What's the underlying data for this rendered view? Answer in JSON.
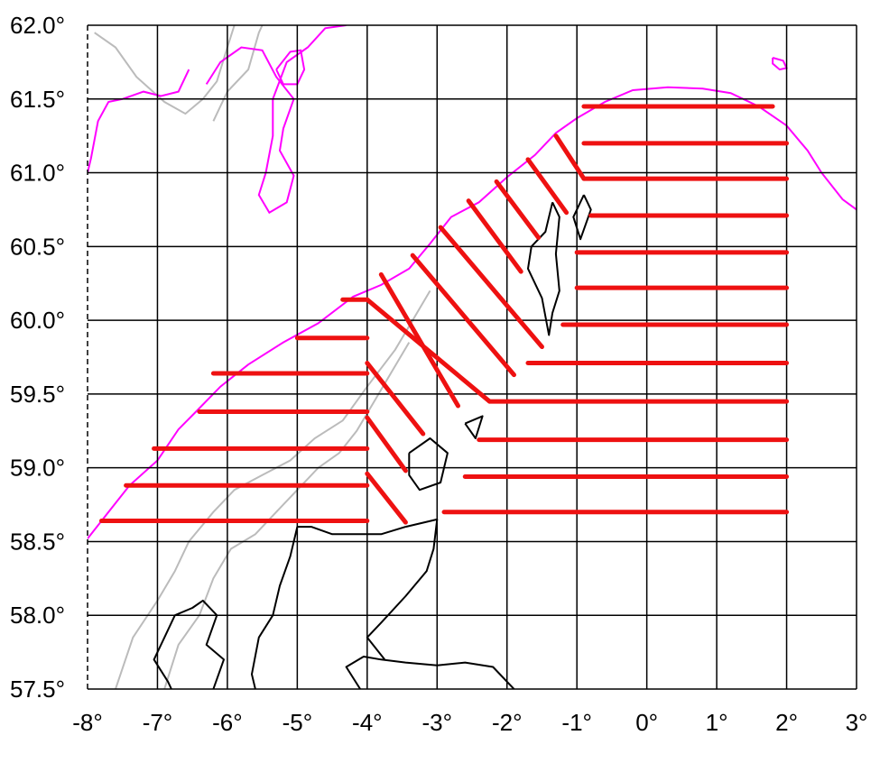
{
  "map": {
    "x_ticks": [
      {
        "value": -8,
        "label": "-8°"
      },
      {
        "value": -7,
        "label": "-7°"
      },
      {
        "value": -6,
        "label": "-6°"
      },
      {
        "value": -5,
        "label": "-5°"
      },
      {
        "value": -4,
        "label": "-4°"
      },
      {
        "value": -3,
        "label": "-3°"
      },
      {
        "value": -2,
        "label": "-2°"
      },
      {
        "value": -1,
        "label": "-1°"
      },
      {
        "value": 0,
        "label": "0°"
      },
      {
        "value": 1,
        "label": "1°"
      },
      {
        "value": 2,
        "label": "2°"
      },
      {
        "value": 3,
        "label": "3°"
      }
    ],
    "y_ticks": [
      {
        "value": 62.0,
        "label": "62.0°"
      },
      {
        "value": 61.5,
        "label": "61.5°"
      },
      {
        "value": 61.0,
        "label": "61.0°"
      },
      {
        "value": 60.5,
        "label": "60.5°"
      },
      {
        "value": 60.0,
        "label": "60.0°"
      },
      {
        "value": 59.5,
        "label": "59.5°"
      },
      {
        "value": 59.0,
        "label": "59.0°"
      },
      {
        "value": 58.5,
        "label": "58.5°"
      },
      {
        "value": 58.0,
        "label": "58.0°"
      },
      {
        "value": 57.5,
        "label": "57.5°"
      }
    ],
    "lon_range": [
      -8,
      3
    ],
    "lat_range": [
      57.5,
      62.0
    ],
    "grid": true,
    "colors": {
      "transects": "#ee1111",
      "shelf_edge": "#ff00ff",
      "bathymetry": "#bbbbbb",
      "coastline": "#000000",
      "grid": "#000000"
    },
    "transects": [
      {
        "from": [
          -0.9,
          61.45
        ],
        "to": [
          1.8,
          61.45
        ]
      },
      {
        "from": [
          -0.9,
          61.2
        ],
        "to": [
          2.0,
          61.2
        ]
      },
      {
        "from": [
          -1.3,
          61.25
        ],
        "to": [
          -0.9,
          60.96
        ]
      },
      {
        "from": [
          -0.9,
          60.96
        ],
        "to": [
          2.0,
          60.96
        ]
      },
      {
        "from": [
          -1.7,
          61.09
        ],
        "to": [
          -1.15,
          60.73
        ]
      },
      {
        "from": [
          -2.15,
          60.94
        ],
        "to": [
          -1.55,
          60.56
        ]
      },
      {
        "from": [
          -0.8,
          60.71
        ],
        "to": [
          2.0,
          60.71
        ]
      },
      {
        "from": [
          -2.55,
          60.81
        ],
        "to": [
          -1.8,
          60.33
        ]
      },
      {
        "from": [
          -1.0,
          60.46
        ],
        "to": [
          2.0,
          60.46
        ]
      },
      {
        "from": [
          -2.95,
          60.63
        ],
        "to": [
          -1.5,
          59.82
        ]
      },
      {
        "from": [
          -3.35,
          60.44
        ],
        "to": [
          -1.9,
          59.63
        ]
      },
      {
        "from": [
          -1.0,
          60.22
        ],
        "to": [
          2.0,
          60.22
        ]
      },
      {
        "from": [
          -3.8,
          60.31
        ],
        "to": [
          -2.7,
          59.42
        ]
      },
      {
        "from": [
          -4.35,
          60.14
        ],
        "to": [
          -4.0,
          60.14
        ]
      },
      {
        "from": [
          -4.0,
          60.14
        ],
        "to": [
          -2.25,
          59.45
        ]
      },
      {
        "from": [
          -1.2,
          59.97
        ],
        "to": [
          2.0,
          59.97
        ]
      },
      {
        "from": [
          -5.0,
          59.88
        ],
        "to": [
          -4.0,
          59.88
        ]
      },
      {
        "from": [
          -1.7,
          59.71
        ],
        "to": [
          2.0,
          59.71
        ]
      },
      {
        "from": [
          -4.0,
          59.71
        ],
        "to": [
          -3.2,
          59.23
        ]
      },
      {
        "from": [
          -6.2,
          59.64
        ],
        "to": [
          -4.0,
          59.64
        ]
      },
      {
        "from": [
          -2.25,
          59.45
        ],
        "to": [
          2.0,
          59.45
        ]
      },
      {
        "from": [
          -6.4,
          59.38
        ],
        "to": [
          -4.0,
          59.38
        ]
      },
      {
        "from": [
          -4.0,
          59.34
        ],
        "to": [
          -3.45,
          58.98
        ]
      },
      {
        "from": [
          -2.4,
          59.19
        ],
        "to": [
          2.0,
          59.19
        ]
      },
      {
        "from": [
          -7.05,
          59.13
        ],
        "to": [
          -4.0,
          59.13
        ]
      },
      {
        "from": [
          -4.0,
          58.96
        ],
        "to": [
          -3.45,
          58.63
        ]
      },
      {
        "from": [
          -2.6,
          58.94
        ],
        "to": [
          2.0,
          58.94
        ]
      },
      {
        "from": [
          -7.45,
          58.88
        ],
        "to": [
          -4.0,
          58.88
        ]
      },
      {
        "from": [
          -2.9,
          58.7
        ],
        "to": [
          2.0,
          58.7
        ]
      },
      {
        "from": [
          -7.8,
          58.64
        ],
        "to": [
          -4.0,
          58.64
        ]
      }
    ],
    "shelf_edge": [
      [
        -8.0,
        58.52
      ],
      [
        -7.7,
        58.7
      ],
      [
        -7.4,
        58.88
      ],
      [
        -7.0,
        59.05
      ],
      [
        -6.7,
        59.26
      ],
      [
        -6.45,
        59.38
      ],
      [
        -6.1,
        59.55
      ],
      [
        -5.7,
        59.7
      ],
      [
        -5.2,
        59.85
      ],
      [
        -4.7,
        59.98
      ],
      [
        -4.2,
        60.16
      ],
      [
        -3.8,
        60.24
      ],
      [
        -3.4,
        60.35
      ],
      [
        -3.1,
        60.52
      ],
      [
        -2.8,
        60.7
      ],
      [
        -2.4,
        60.8
      ],
      [
        -2.0,
        60.97
      ],
      [
        -1.6,
        61.12
      ],
      [
        -1.3,
        61.27
      ],
      [
        -1.0,
        61.37
      ],
      [
        -0.6,
        61.48
      ],
      [
        -0.2,
        61.56
      ],
      [
        0.3,
        61.58
      ],
      [
        0.8,
        61.57
      ],
      [
        1.2,
        61.54
      ],
      [
        1.6,
        61.45
      ],
      [
        2.0,
        61.32
      ],
      [
        2.3,
        61.15
      ],
      [
        2.5,
        61.0
      ],
      [
        2.8,
        60.82
      ],
      [
        3.0,
        60.75
      ]
    ],
    "shelf_edge_north": [
      [
        -6.3,
        61.6
      ],
      [
        -6.1,
        61.75
      ],
      [
        -5.8,
        61.85
      ],
      [
        -5.5,
        61.83
      ],
      [
        -5.3,
        61.65
      ],
      [
        -5.05,
        61.5
      ],
      [
        -5.2,
        61.3
      ],
      [
        -5.25,
        61.15
      ],
      [
        -5.05,
        60.98
      ],
      [
        -5.15,
        60.8
      ],
      [
        -5.4,
        60.73
      ],
      [
        -5.55,
        60.85
      ],
      [
        -5.45,
        61.0
      ],
      [
        -5.35,
        61.25
      ],
      [
        -5.35,
        61.5
      ],
      [
        -5.15,
        61.75
      ],
      [
        -4.85,
        61.85
      ],
      [
        -4.6,
        61.98
      ],
      [
        -4.3,
        62.0
      ]
    ],
    "shelf_edge_northwest": [
      [
        -8.0,
        61.0
      ],
      [
        -7.95,
        61.1
      ],
      [
        -7.85,
        61.35
      ],
      [
        -7.7,
        61.48
      ],
      [
        -7.5,
        61.5
      ],
      [
        -7.2,
        61.55
      ],
      [
        -6.95,
        61.52
      ],
      [
        -6.7,
        61.55
      ],
      [
        -6.55,
        61.7
      ]
    ],
    "shelf_ring": [
      [
        -5.3,
        61.7
      ],
      [
        -5.1,
        61.82
      ],
      [
        -4.95,
        61.83
      ],
      [
        -4.9,
        61.7
      ],
      [
        -5.0,
        61.6
      ],
      [
        -5.2,
        61.6
      ],
      [
        -5.3,
        61.7
      ]
    ],
    "shelf_ring_east": [
      [
        1.8,
        61.78
      ],
      [
        1.95,
        61.76
      ],
      [
        2.0,
        61.71
      ],
      [
        1.9,
        61.7
      ],
      [
        1.8,
        61.74
      ],
      [
        1.8,
        61.78
      ]
    ],
    "bathymetry_lines": [
      [
        [
          -7.6,
          57.5
        ],
        [
          -7.35,
          57.85
        ],
        [
          -7.0,
          58.1
        ],
        [
          -6.75,
          58.3
        ],
        [
          -6.55,
          58.5
        ],
        [
          -6.2,
          58.7
        ],
        [
          -5.9,
          58.85
        ],
        [
          -5.5,
          58.95
        ],
        [
          -5.1,
          59.05
        ],
        [
          -4.75,
          59.2
        ],
        [
          -4.35,
          59.32
        ],
        [
          -4.0,
          59.55
        ],
        [
          -3.6,
          59.8
        ],
        [
          -3.35,
          60.0
        ],
        [
          -3.1,
          60.2
        ]
      ],
      [
        [
          -6.9,
          57.5
        ],
        [
          -6.7,
          57.8
        ],
        [
          -6.4,
          58.0
        ],
        [
          -6.2,
          58.25
        ],
        [
          -5.95,
          58.45
        ],
        [
          -5.6,
          58.55
        ],
        [
          -5.3,
          58.7
        ],
        [
          -5.0,
          58.85
        ],
        [
          -4.7,
          59.0
        ],
        [
          -4.4,
          59.1
        ],
        [
          -4.15,
          59.25
        ],
        [
          -3.9,
          59.45
        ],
        [
          -3.65,
          59.65
        ],
        [
          -3.4,
          59.85
        ]
      ],
      [
        [
          -7.9,
          61.95
        ],
        [
          -7.6,
          61.85
        ],
        [
          -7.3,
          61.65
        ],
        [
          -6.9,
          61.48
        ],
        [
          -6.6,
          61.4
        ],
        [
          -6.35,
          61.5
        ],
        [
          -6.15,
          61.62
        ],
        [
          -6.0,
          61.85
        ],
        [
          -5.9,
          62.0
        ]
      ],
      [
        [
          -6.2,
          61.35
        ],
        [
          -6.0,
          61.55
        ],
        [
          -5.7,
          61.7
        ],
        [
          -5.55,
          61.95
        ],
        [
          -5.5,
          62.0
        ]
      ]
    ],
    "coastline_paths": [
      [
        [
          -4.1,
          57.5
        ],
        [
          -4.3,
          57.65
        ],
        [
          -4.05,
          57.72
        ],
        [
          -3.8,
          57.7
        ],
        [
          -3.45,
          57.68
        ],
        [
          -3.0,
          57.66
        ],
        [
          -2.6,
          57.68
        ],
        [
          -2.2,
          57.65
        ],
        [
          -1.9,
          57.5
        ]
      ],
      [
        [
          -3.45,
          58.6
        ],
        [
          -3.0,
          58.65
        ],
        [
          -3.05,
          58.45
        ],
        [
          -3.15,
          58.3
        ],
        [
          -3.45,
          58.13
        ],
        [
          -3.8,
          57.95
        ],
        [
          -4.0,
          57.85
        ],
        [
          -3.75,
          57.7
        ]
      ],
      [
        [
          -3.45,
          58.6
        ],
        [
          -3.8,
          58.55
        ],
        [
          -4.2,
          58.55
        ],
        [
          -4.5,
          58.55
        ],
        [
          -4.8,
          58.6
        ],
        [
          -5.0,
          58.6
        ],
        [
          -5.1,
          58.4
        ],
        [
          -5.25,
          58.2
        ],
        [
          -5.35,
          58.0
        ],
        [
          -5.55,
          57.85
        ],
        [
          -5.65,
          57.6
        ],
        [
          -5.6,
          57.5
        ]
      ],
      [
        [
          -6.2,
          57.5
        ],
        [
          -6.05,
          57.7
        ],
        [
          -6.3,
          57.8
        ],
        [
          -6.15,
          58.0
        ],
        [
          -6.35,
          58.1
        ],
        [
          -6.5,
          58.05
        ],
        [
          -6.75,
          58.0
        ],
        [
          -6.9,
          57.85
        ],
        [
          -7.05,
          57.7
        ],
        [
          -6.85,
          57.55
        ],
        [
          -6.8,
          57.5
        ]
      ],
      [
        [
          -3.4,
          59.1
        ],
        [
          -3.1,
          59.2
        ],
        [
          -2.85,
          59.1
        ],
        [
          -2.95,
          58.9
        ],
        [
          -3.25,
          58.85
        ],
        [
          -3.4,
          58.95
        ],
        [
          -3.4,
          59.1
        ]
      ],
      [
        [
          -2.6,
          59.3
        ],
        [
          -2.35,
          59.35
        ],
        [
          -2.45,
          59.2
        ],
        [
          -2.6,
          59.3
        ]
      ],
      [
        [
          -1.35,
          60.8
        ],
        [
          -1.25,
          60.7
        ],
        [
          -1.3,
          60.45
        ],
        [
          -1.25,
          60.2
        ],
        [
          -1.35,
          60.05
        ],
        [
          -1.4,
          59.9
        ],
        [
          -1.5,
          60.15
        ],
        [
          -1.7,
          60.35
        ],
        [
          -1.65,
          60.5
        ],
        [
          -1.45,
          60.6
        ],
        [
          -1.35,
          60.8
        ]
      ],
      [
        [
          -0.9,
          60.85
        ],
        [
          -0.8,
          60.75
        ],
        [
          -0.95,
          60.55
        ],
        [
          -1.05,
          60.7
        ],
        [
          -0.9,
          60.85
        ]
      ]
    ]
  }
}
